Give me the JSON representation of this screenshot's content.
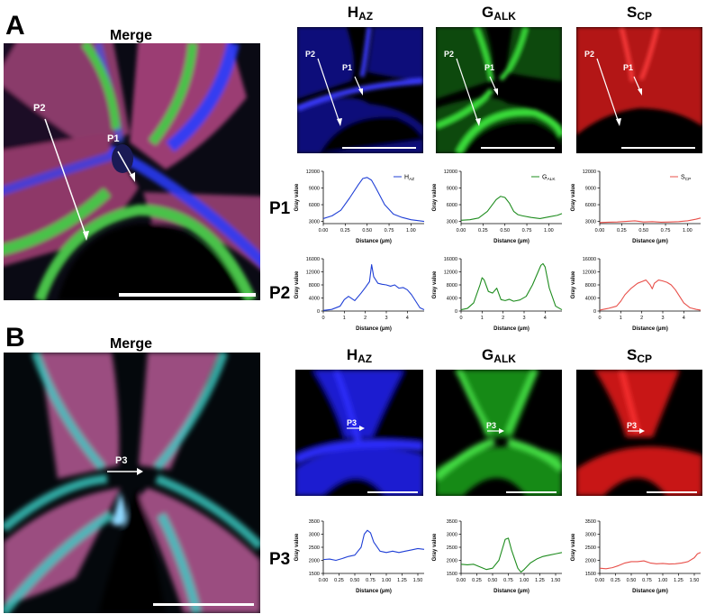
{
  "panels": {
    "A": {
      "letter": "A",
      "merge_title": "Merge",
      "arrows": [
        "P2",
        "P1"
      ],
      "channel_heads": [
        {
          "main": "H",
          "sub": "AZ",
          "color": "#2020ff"
        },
        {
          "main": "G",
          "sub": "ALK",
          "color": "#20c020"
        },
        {
          "main": "S",
          "sub": "CP",
          "color": "#ff2020"
        }
      ]
    },
    "B": {
      "letter": "B",
      "merge_title": "Merge",
      "arrows": [
        "P3"
      ],
      "channel_heads": [
        {
          "main": "H",
          "sub": "AZ",
          "color": "#2020ff"
        },
        {
          "main": "G",
          "sub": "ALK",
          "color": "#20c020"
        },
        {
          "main": "S",
          "sub": "CP",
          "color": "#ff2020"
        }
      ]
    }
  },
  "row_labels": [
    "P1",
    "P2",
    "P3"
  ],
  "chart_data": [
    {
      "id": "P1-H",
      "type": "line",
      "legend": {
        "main": "H",
        "sub": "AZ"
      },
      "color": "#1f3fd6",
      "ylabel": "Gray value",
      "xlabel": "Distance (μm)",
      "xlim": [
        0,
        1.15
      ],
      "ylim": [
        2600,
        12000
      ],
      "xticks": [
        0,
        0.25,
        0.5,
        0.75,
        1.0
      ],
      "xtick_labels": [
        "0.00",
        "0.25",
        "0.50",
        "0.75",
        "1.00"
      ],
      "yticks": [
        3000,
        6000,
        9000,
        12000
      ],
      "x": [
        0,
        0.1,
        0.2,
        0.3,
        0.4,
        0.45,
        0.5,
        0.55,
        0.6,
        0.7,
        0.8,
        0.9,
        1.0,
        1.1,
        1.15
      ],
      "y": [
        3500,
        4000,
        5000,
        7200,
        9600,
        10700,
        10900,
        10400,
        9000,
        6000,
        4300,
        3700,
        3300,
        3100,
        3000
      ]
    },
    {
      "id": "P1-G",
      "type": "line",
      "legend": {
        "main": "G",
        "sub": "ALK"
      },
      "color": "#1e8c1e",
      "ylabel": "Gray value",
      "xlabel": "Distance (μm)",
      "xlim": [
        0,
        1.15
      ],
      "ylim": [
        2600,
        12000
      ],
      "xticks": [
        0,
        0.25,
        0.5,
        0.75,
        1.0
      ],
      "xtick_labels": [
        "0.00",
        "0.25",
        "0.50",
        "0.75",
        "1.00"
      ],
      "yticks": [
        3000,
        6000,
        9000,
        12000
      ],
      "x": [
        0,
        0.1,
        0.2,
        0.3,
        0.4,
        0.45,
        0.5,
        0.55,
        0.6,
        0.65,
        0.7,
        0.8,
        0.9,
        1.0,
        1.1,
        1.15
      ],
      "y": [
        3200,
        3300,
        3600,
        4800,
        6900,
        7500,
        7300,
        6300,
        4800,
        4200,
        4000,
        3700,
        3500,
        3800,
        4100,
        4400
      ]
    },
    {
      "id": "P1-S",
      "type": "line",
      "legend": {
        "main": "S",
        "sub": "CP"
      },
      "color": "#e8504a",
      "ylabel": "Gray value",
      "xlabel": "Distance (μm)",
      "xlim": [
        0,
        1.15
      ],
      "ylim": [
        2600,
        12000
      ],
      "xticks": [
        0,
        0.25,
        0.5,
        0.75,
        1.0
      ],
      "xtick_labels": [
        "0.00",
        "0.25",
        "0.50",
        "0.75",
        "1.00"
      ],
      "yticks": [
        3000,
        6000,
        9000,
        12000
      ],
      "x": [
        0,
        0.1,
        0.2,
        0.3,
        0.4,
        0.5,
        0.6,
        0.7,
        0.8,
        0.9,
        1.0,
        1.1,
        1.15
      ],
      "y": [
        2800,
        2850,
        2900,
        3000,
        3100,
        2900,
        2950,
        2850,
        2900,
        2950,
        3100,
        3400,
        3600
      ]
    },
    {
      "id": "P2-H",
      "type": "line",
      "color": "#1f3fd6",
      "ylabel": "Gray value",
      "xlabel": "Distance (μm)",
      "xlim": [
        0,
        4.8
      ],
      "ylim": [
        0,
        16000
      ],
      "xticks": [
        0,
        1,
        2,
        3,
        4
      ],
      "xtick_labels": [
        "0",
        "1",
        "2",
        "3",
        "4"
      ],
      "yticks": [
        0,
        4000,
        8000,
        12000,
        16000
      ],
      "x": [
        0,
        0.4,
        0.8,
        1.0,
        1.2,
        1.5,
        1.8,
        2.0,
        2.2,
        2.3,
        2.4,
        2.6,
        2.8,
        3.0,
        3.2,
        3.4,
        3.6,
        3.8,
        4.0,
        4.2,
        4.4,
        4.6,
        4.8
      ],
      "y": [
        200,
        500,
        1500,
        3500,
        4500,
        3200,
        5500,
        7200,
        9000,
        14200,
        10500,
        8500,
        8200,
        8000,
        7600,
        8000,
        7000,
        7200,
        6500,
        5000,
        3000,
        1000,
        400
      ]
    },
    {
      "id": "P2-G",
      "type": "line",
      "color": "#1e8c1e",
      "ylabel": "Gray value",
      "xlabel": "Distance (μm)",
      "xlim": [
        0,
        4.8
      ],
      "ylim": [
        0,
        16000
      ],
      "xticks": [
        0,
        1,
        2,
        3,
        4
      ],
      "xtick_labels": [
        "0",
        "1",
        "2",
        "3",
        "4"
      ],
      "yticks": [
        0,
        4000,
        8000,
        12000,
        16000
      ],
      "x": [
        0,
        0.3,
        0.6,
        0.9,
        1.0,
        1.1,
        1.3,
        1.5,
        1.7,
        1.9,
        2.1,
        2.3,
        2.5,
        2.8,
        3.1,
        3.4,
        3.6,
        3.8,
        3.9,
        4.0,
        4.2,
        4.5,
        4.8
      ],
      "y": [
        400,
        800,
        2500,
        8000,
        10200,
        9500,
        6000,
        5500,
        7000,
        3500,
        3200,
        3600,
        3000,
        3400,
        4500,
        8000,
        11000,
        14000,
        14500,
        13500,
        7000,
        1500,
        400
      ]
    },
    {
      "id": "P2-S",
      "type": "line",
      "color": "#e8504a",
      "ylabel": "Gray value",
      "xlabel": "Distance (μm)",
      "xlim": [
        0,
        4.8
      ],
      "ylim": [
        0,
        16000
      ],
      "xticks": [
        0,
        1,
        2,
        3,
        4
      ],
      "xtick_labels": [
        "0",
        "1",
        "2",
        "3",
        "4"
      ],
      "yticks": [
        0,
        4000,
        8000,
        12000,
        16000
      ],
      "x": [
        0,
        0.4,
        0.8,
        1.0,
        1.2,
        1.5,
        1.8,
        2.0,
        2.2,
        2.4,
        2.5,
        2.6,
        2.8,
        3.0,
        3.2,
        3.4,
        3.6,
        3.8,
        4.0,
        4.3,
        4.6,
        4.8
      ],
      "y": [
        300,
        800,
        1500,
        3000,
        5000,
        7000,
        8500,
        9000,
        9500,
        8000,
        6800,
        8500,
        9500,
        9200,
        8800,
        8000,
        6500,
        4500,
        2500,
        1000,
        500,
        300
      ]
    },
    {
      "id": "P3-H",
      "type": "line",
      "color": "#1f3fd6",
      "ylabel": "Gray value",
      "xlabel": "Distance (μm)",
      "xlim": [
        0,
        1.6
      ],
      "ylim": [
        1500,
        3500
      ],
      "xticks": [
        0,
        0.25,
        0.5,
        0.75,
        1.0,
        1.25,
        1.5
      ],
      "xtick_labels": [
        "0.00",
        "0.25",
        "0.50",
        "0.75",
        "1.00",
        "1.25",
        "1.50"
      ],
      "yticks": [
        1500,
        2000,
        2500,
        3000,
        3500
      ],
      "x": [
        0,
        0.1,
        0.2,
        0.3,
        0.4,
        0.5,
        0.6,
        0.65,
        0.7,
        0.75,
        0.8,
        0.9,
        1.0,
        1.1,
        1.2,
        1.3,
        1.4,
        1.5,
        1.6
      ],
      "y": [
        2030,
        2050,
        2000,
        2070,
        2150,
        2200,
        2500,
        3000,
        3150,
        3050,
        2700,
        2350,
        2300,
        2350,
        2300,
        2350,
        2400,
        2450,
        2420
      ]
    },
    {
      "id": "P3-G",
      "type": "line",
      "color": "#1e8c1e",
      "ylabel": "Gray value",
      "xlabel": "Distance (μm)",
      "xlim": [
        0,
        1.6
      ],
      "ylim": [
        1500,
        3500
      ],
      "xticks": [
        0,
        0.25,
        0.5,
        0.75,
        1.0,
        1.25,
        1.5
      ],
      "xtick_labels": [
        "0.00",
        "0.25",
        "0.50",
        "0.75",
        "1.00",
        "1.25",
        "1.50"
      ],
      "yticks": [
        1500,
        2000,
        2500,
        3000,
        3500
      ],
      "x": [
        0,
        0.1,
        0.2,
        0.3,
        0.4,
        0.5,
        0.6,
        0.7,
        0.75,
        0.8,
        0.9,
        0.95,
        1.0,
        1.1,
        1.2,
        1.3,
        1.4,
        1.5,
        1.6
      ],
      "y": [
        1850,
        1830,
        1850,
        1750,
        1650,
        1700,
        2000,
        2800,
        2850,
        2400,
        1700,
        1550,
        1650,
        1900,
        2050,
        2150,
        2200,
        2250,
        2300
      ]
    },
    {
      "id": "P3-S",
      "type": "line",
      "color": "#e8504a",
      "ylabel": "Gray value",
      "xlabel": "Distance (μm)",
      "xlim": [
        0,
        1.6
      ],
      "ylim": [
        1500,
        3500
      ],
      "xticks": [
        0,
        0.25,
        0.5,
        0.75,
        1.0,
        1.25,
        1.5
      ],
      "xtick_labels": [
        "0.00",
        "0.25",
        "0.50",
        "0.75",
        "1.00",
        "1.25",
        "1.50"
      ],
      "yticks": [
        1500,
        2000,
        2500,
        3000,
        3500
      ],
      "x": [
        0,
        0.1,
        0.2,
        0.3,
        0.4,
        0.5,
        0.6,
        0.7,
        0.8,
        0.9,
        1.0,
        1.1,
        1.2,
        1.3,
        1.4,
        1.5,
        1.55,
        1.6
      ],
      "y": [
        1700,
        1680,
        1720,
        1800,
        1900,
        1950,
        1950,
        1980,
        1900,
        1870,
        1880,
        1860,
        1870,
        1900,
        1950,
        2100,
        2250,
        2300
      ]
    }
  ]
}
